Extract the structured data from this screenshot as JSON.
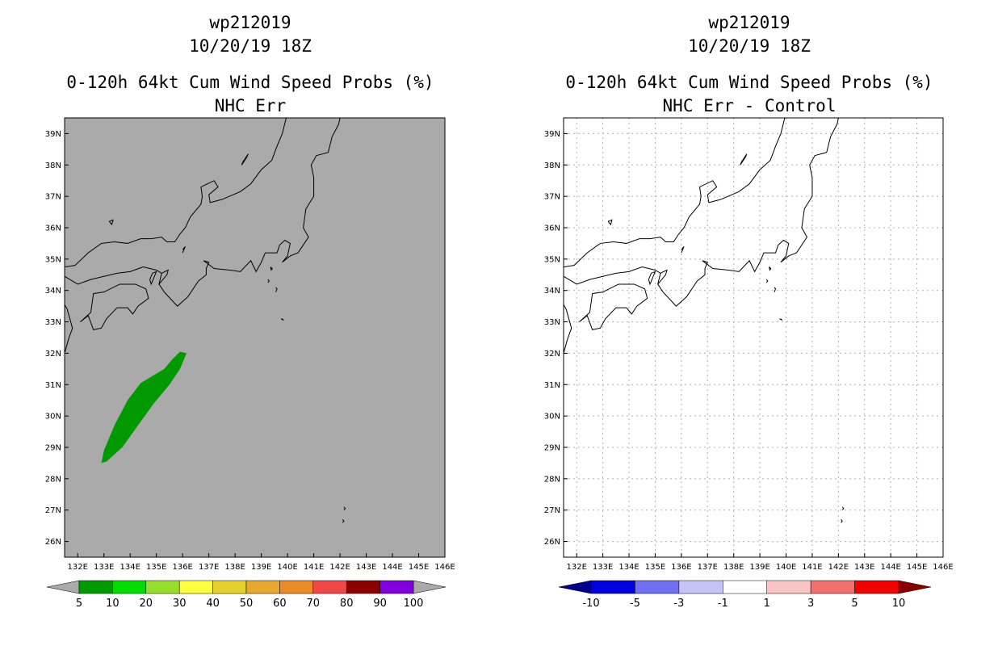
{
  "panel_left": {
    "title_line1": "wp212019",
    "title_line2": "10/20/19 18Z",
    "title_line3": "0-120h 64kt Cum Wind Speed Probs (%)",
    "title_line4": "NHC Err",
    "colorbar": {
      "colors": [
        "#009a00",
        "#00db00",
        "#98dc2e",
        "#ffff40",
        "#e6d02e",
        "#e6a830",
        "#ea8a28",
        "#f04848",
        "#8a0000",
        "#8000e0"
      ],
      "labels": [
        "5",
        "10",
        "20",
        "30",
        "40",
        "50",
        "60",
        "70",
        "80",
        "90",
        "100"
      ],
      "end_color": "#aaaaaa"
    },
    "colors": {
      "background": "#aaaaaa",
      "swath": "#009a00"
    }
  },
  "panel_right": {
    "title_line1": "wp212019",
    "title_line2": "10/20/19 18Z",
    "title_line3": "0-120h 64kt Cum Wind Speed Probs (%)",
    "title_line4": "NHC Err - Control",
    "colorbar": {
      "colors": [
        "#0000e0",
        "#7070f0",
        "#c4c4f8",
        "#ffffff",
        "#f8c4c4",
        "#f07070",
        "#f00000"
      ],
      "labels": [
        "-10",
        "-5",
        "-3",
        "-1",
        "1",
        "3",
        "5",
        "10"
      ],
      "end_left_color": "#00008a",
      "end_right_color": "#8a0000"
    },
    "colors": {
      "background": "#ffffff",
      "grid": "#b0b0b0"
    }
  },
  "axes": {
    "lon_labels": [
      "132E",
      "133E",
      "134E",
      "135E",
      "136E",
      "137E",
      "138E",
      "139E",
      "140E",
      "141E",
      "142E",
      "143E",
      "144E",
      "145E",
      "146E"
    ],
    "lat_labels": [
      "39N",
      "38N",
      "37N",
      "36N",
      "35N",
      "34N",
      "33N",
      "32N",
      "31N",
      "30N",
      "29N",
      "28N",
      "27N",
      "26N"
    ],
    "lon_min": 131.5,
    "lon_max": 146,
    "lat_min": 25.5,
    "lat_max": 39.5
  },
  "chart_data": [
    {
      "type": "heatmap",
      "title": "0-120h 64kt Cum Wind Speed Probs (%) - NHC Err",
      "subtitle": "wp212019 10/20/19 18Z",
      "xlabel": "",
      "ylabel": "",
      "xlim": [
        131.5,
        146
      ],
      "ylim": [
        25.5,
        39.5
      ],
      "regions": [
        {
          "name": "5-10% probability swath",
          "range": [
            5,
            10
          ],
          "polygon_lonlat": [
            [
              132.9,
              28.5
            ],
            [
              133.0,
              28.9
            ],
            [
              133.4,
              29.7
            ],
            [
              133.9,
              30.5
            ],
            [
              134.4,
              31.05
            ],
            [
              135.3,
              31.5
            ],
            [
              135.6,
              31.8
            ],
            [
              135.9,
              32.05
            ],
            [
              136.15,
              32.0
            ],
            [
              135.9,
              31.5
            ],
            [
              135.5,
              31.0
            ],
            [
              134.9,
              30.4
            ],
            [
              134.3,
              29.7
            ],
            [
              133.7,
              29.0
            ],
            [
              133.1,
              28.55
            ]
          ]
        }
      ]
    },
    {
      "type": "heatmap",
      "title": "0-120h 64kt Cum Wind Speed Probs (%) - NHC Err - Control",
      "subtitle": "wp212019 10/20/19 18Z",
      "xlabel": "",
      "ylabel": "",
      "xlim": [
        131.5,
        146
      ],
      "ylim": [
        25.5,
        39.5
      ],
      "regions": []
    }
  ]
}
